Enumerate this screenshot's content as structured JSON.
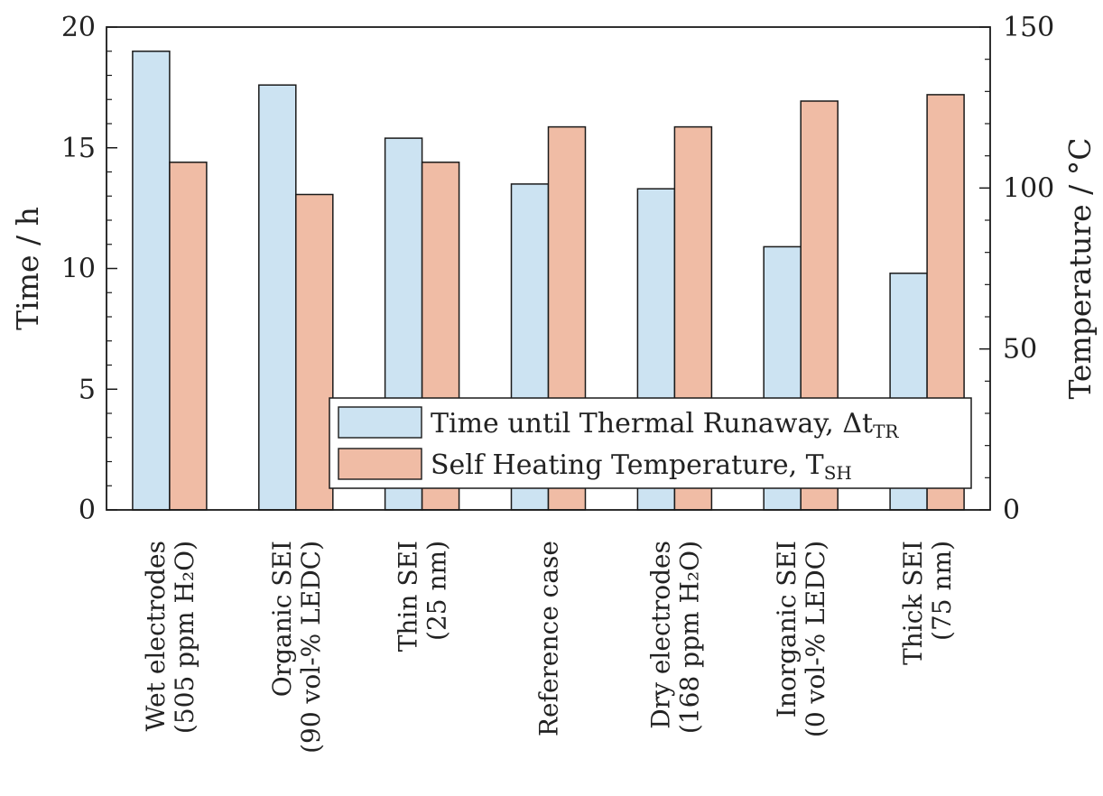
{
  "chart_data": {
    "type": "bar",
    "categories": [
      [
        "Wet electrodes",
        "(505 ppm H₂O)"
      ],
      [
        "Organic SEI",
        "(90 vol-% LEDC)"
      ],
      [
        "Thin SEI",
        "(25 nm)"
      ],
      [
        "Reference case"
      ],
      [
        "Dry electrodes",
        "(168 ppm H₂O)"
      ],
      [
        "Inorganic SEI",
        "(0 vol-% LEDC)"
      ],
      [
        "Thick SEI",
        "(75 nm)"
      ]
    ],
    "series": [
      {
        "name": "Time until Thermal Runaway, Δt",
        "name_sub": "TR",
        "axis": "left",
        "color": "#cce3f2",
        "values": [
          19.0,
          17.6,
          15.4,
          13.5,
          13.3,
          10.9,
          9.8
        ]
      },
      {
        "name": "Self Heating Temperature, T",
        "name_sub": "SH",
        "axis": "right",
        "color": "#f0bca5",
        "values": [
          108,
          98,
          108,
          119,
          119,
          127,
          129
        ]
      }
    ],
    "ylabel": "Time / h",
    "y2label": "Temperature / °C",
    "ylim": [
      0,
      20
    ],
    "y2lim": [
      0,
      150
    ],
    "yticks": [
      "0",
      "5",
      "10",
      "15",
      "20"
    ],
    "y2ticks": [
      "0",
      "50",
      "100",
      "150"
    ],
    "grid": false,
    "legend_position": "lower-right"
  }
}
